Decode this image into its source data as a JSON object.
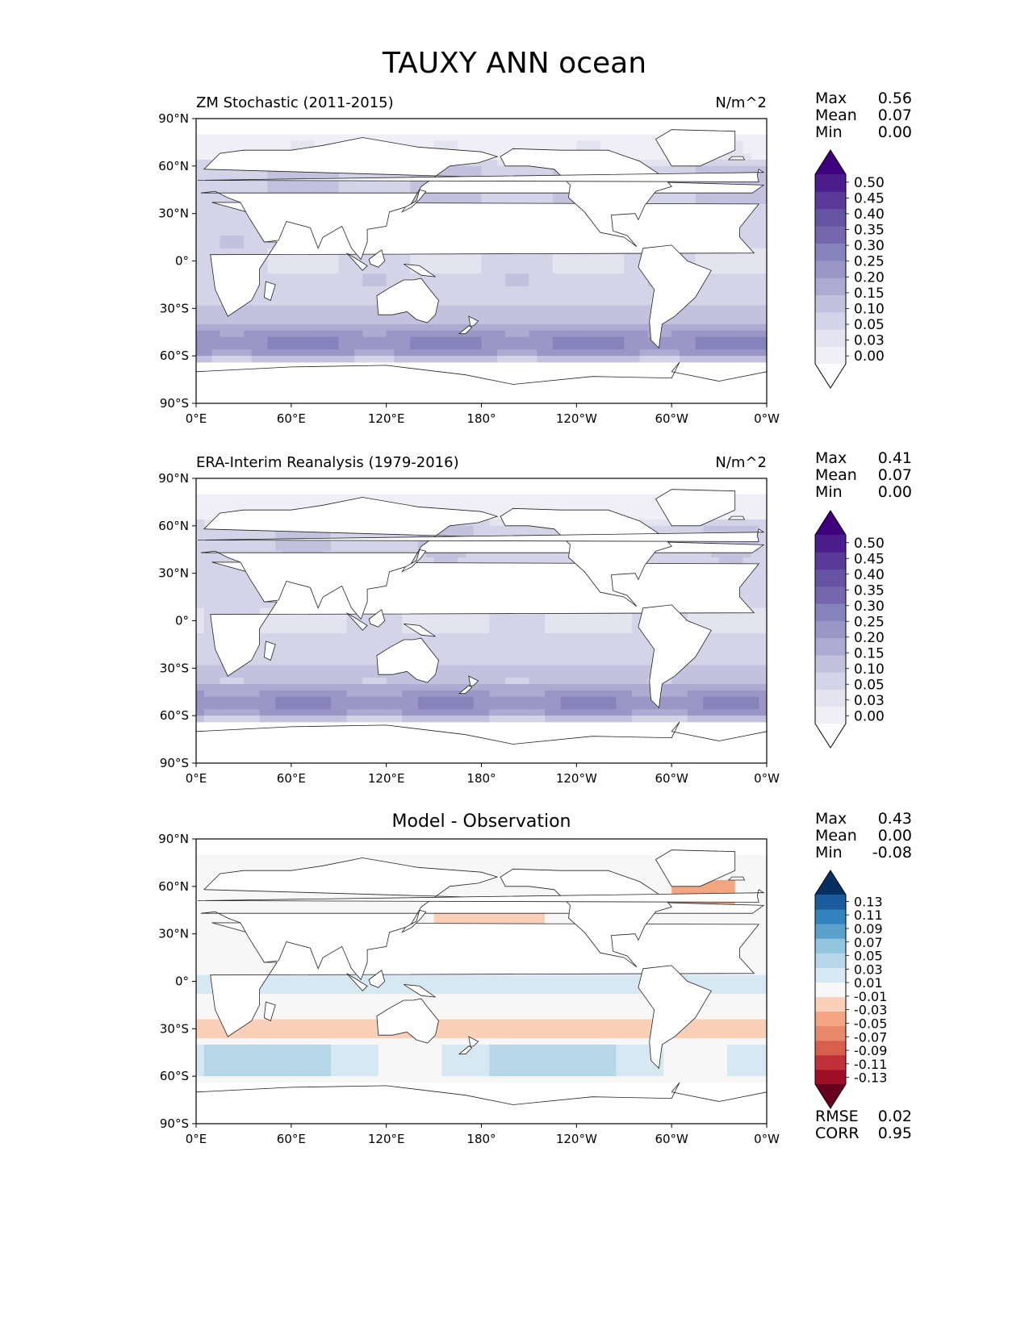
{
  "figure": {
    "title": "TAUXY ANN ocean"
  },
  "chart_data": [
    {
      "type": "heatmap",
      "projection": "plate carree global map",
      "title": "ZM Stochastic (2011-2015)",
      "units": "N/m^2",
      "x_ticks": [
        "0°E",
        "60°E",
        "120°E",
        "180°",
        "120°W",
        "60°W",
        "0°W"
      ],
      "y_ticks": [
        "90°N",
        "60°N",
        "30°N",
        "0°",
        "30°S",
        "60°S",
        "90°S"
      ],
      "xlim": [
        0,
        360
      ],
      "ylim": [
        -90,
        90
      ],
      "stats": {
        "max_label": "Max",
        "max": "0.56",
        "mean_label": "Mean",
        "mean": "0.07",
        "min_label": "Min",
        "min": "0.00"
      },
      "colorbar": {
        "levels": [
          "0.00",
          "0.03",
          "0.05",
          "0.10",
          "0.15",
          "0.20",
          "0.25",
          "0.30",
          "0.35",
          "0.40",
          "0.45",
          "0.50"
        ],
        "colors": [
          "#fcfbfd",
          "#f0eff6",
          "#e4e3f0",
          "#d4d4e8",
          "#c2c2df",
          "#adabd2",
          "#9a96c6",
          "#8683bd",
          "#7566ae",
          "#6753a3",
          "#5a3a98",
          "#4a1c8c",
          "#3f007d"
        ],
        "extend": "both"
      },
      "field_style": "lavender shading over oceans, strongest band along the Southern Ocean 45°S-60°S"
    },
    {
      "type": "heatmap",
      "projection": "plate carree global map",
      "title": "ERA-Interim Reanalysis (1979-2016)",
      "units": "N/m^2",
      "x_ticks": [
        "0°E",
        "60°E",
        "120°E",
        "180°",
        "120°W",
        "60°W",
        "0°W"
      ],
      "y_ticks": [
        "90°N",
        "60°N",
        "30°N",
        "0°",
        "30°S",
        "60°S",
        "90°S"
      ],
      "xlim": [
        0,
        360
      ],
      "ylim": [
        -90,
        90
      ],
      "stats": {
        "max_label": "Max",
        "max": "0.41",
        "mean_label": "Mean",
        "mean": "0.07",
        "min_label": "Min",
        "min": "0.00"
      },
      "colorbar": {
        "levels": [
          "0.00",
          "0.03",
          "0.05",
          "0.10",
          "0.15",
          "0.20",
          "0.25",
          "0.30",
          "0.35",
          "0.40",
          "0.45",
          "0.50"
        ],
        "colors": [
          "#fcfbfd",
          "#f0eff6",
          "#e4e3f0",
          "#d4d4e8",
          "#c2c2df",
          "#adabd2",
          "#9a96c6",
          "#8683bd",
          "#7566ae",
          "#6753a3",
          "#5a3a98",
          "#4a1c8c",
          "#3f007d"
        ],
        "extend": "both"
      },
      "field_style": "lavender shading over oceans, strongest band along the Southern Ocean 45°S-60°S"
    },
    {
      "type": "heatmap",
      "projection": "plate carree global map",
      "title": "Model - Observation",
      "units": "",
      "x_ticks": [
        "0°E",
        "60°E",
        "120°E",
        "180°",
        "120°W",
        "60°W",
        "0°W"
      ],
      "y_ticks": [
        "90°N",
        "60°N",
        "30°N",
        "0°",
        "30°S",
        "60°S",
        "90°S"
      ],
      "xlim": [
        0,
        360
      ],
      "ylim": [
        -90,
        90
      ],
      "stats": {
        "max_label": "Max",
        "max": "0.43",
        "mean_label": "Mean",
        "mean": "0.00",
        "min_label": "Min",
        "min": "-0.08"
      },
      "metrics": {
        "rmse_label": "RMSE",
        "rmse": "0.02",
        "corr_label": "CORR",
        "corr": "0.95"
      },
      "colorbar": {
        "levels": [
          "-0.13",
          "-0.11",
          "-0.09",
          "-0.07",
          "-0.05",
          "-0.03",
          "-0.01",
          "0.01",
          "0.03",
          "0.05",
          "0.07",
          "0.09",
          "0.11",
          "0.13"
        ],
        "colors": [
          "#67001f",
          "#9e0f27",
          "#c2303a",
          "#d6604d",
          "#e8896b",
          "#f4a582",
          "#fbd0b9",
          "#f7f7f7",
          "#d6e8f1",
          "#b6d7e8",
          "#92c5de",
          "#5aa2cc",
          "#3283be",
          "#1a5c9e",
          "#053061"
        ],
        "extend": "both"
      },
      "field_style": "mostly near-zero grey with light blue in Southern Ocean and light red patches in North Atlantic and Pacific"
    }
  ]
}
